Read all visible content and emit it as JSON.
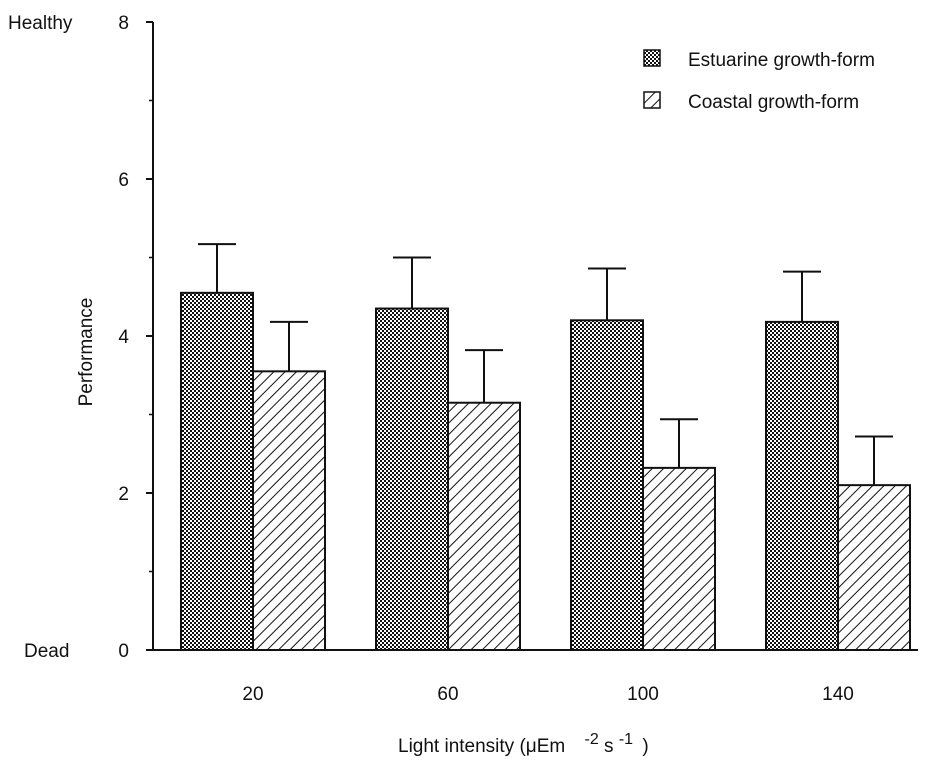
{
  "chart_data": {
    "type": "bar",
    "categories": [
      "20",
      "60",
      "100",
      "140"
    ],
    "series": [
      {
        "name": "Estuarine growth-form",
        "values": [
          4.55,
          4.35,
          4.2,
          4.18
        ],
        "error": [
          0.62,
          0.65,
          0.66,
          0.64
        ],
        "pattern": "dotted"
      },
      {
        "name": "Coastal growth-form",
        "values": [
          3.55,
          3.15,
          2.32,
          2.1
        ],
        "error": [
          0.63,
          0.67,
          0.62,
          0.62
        ],
        "pattern": "hatched"
      }
    ],
    "ylim": [
      0,
      8
    ],
    "yticks": [
      "0",
      "2",
      "4",
      "6",
      "8"
    ],
    "ylabel": "Performance",
    "xlabel": "Light intensity (μEm",
    "xlabel_sup1": "-2",
    "xlabel_mid": "s",
    "xlabel_sup2": "-1",
    "xlabel_end": ")",
    "y_top_label": "Healthy",
    "y_bottom_label": "Dead",
    "legend_position": "top-right",
    "grid": false,
    "colors": {
      "ink": "#111111",
      "bar_fill": "#ffffff"
    }
  }
}
